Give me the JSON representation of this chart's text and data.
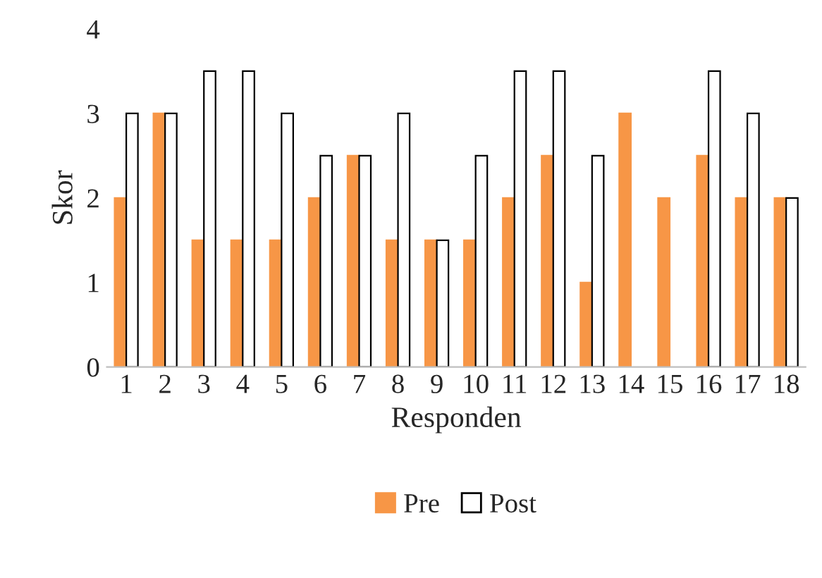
{
  "chart_data": {
    "type": "bar",
    "xlabel": "Responden",
    "ylabel": "Skor",
    "categories": [
      "1",
      "2",
      "3",
      "4",
      "5",
      "6",
      "7",
      "8",
      "9",
      "10",
      "11",
      "12",
      "13",
      "14",
      "15",
      "16",
      "17",
      "18"
    ],
    "series": [
      {
        "name": "Pre",
        "color": "#f79646",
        "values": [
          2,
          3,
          1.5,
          1.5,
          1.5,
          2,
          2.5,
          1.5,
          1.5,
          1.5,
          2,
          2.5,
          1,
          3,
          2,
          2.5,
          2,
          2
        ]
      },
      {
        "name": "Post",
        "color": "#ffffff",
        "values": [
          3,
          3,
          3.5,
          3.5,
          3,
          2.5,
          2.5,
          3,
          1.5,
          2.5,
          3.5,
          3.5,
          2.5,
          null,
          null,
          3.5,
          3,
          2
        ]
      }
    ],
    "ylim": [
      0,
      4
    ],
    "yticks": [
      0,
      1,
      2,
      3,
      4
    ],
    "grid": false,
    "legend": "bottom"
  }
}
